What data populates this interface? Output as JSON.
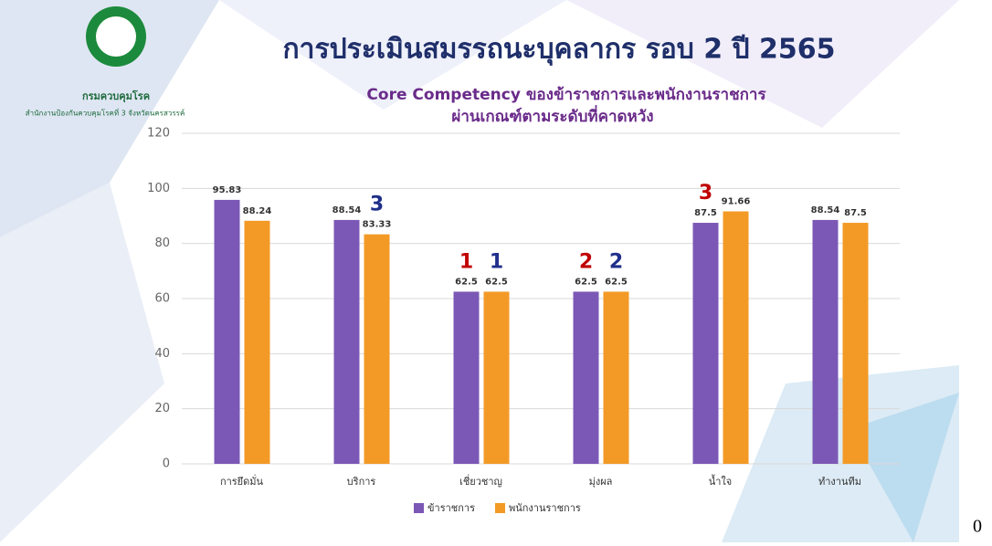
{
  "chart_data": {
    "type": "bar",
    "title": "การประเมินสมรรถนะบุคลากร รอบ 2 ปี 2565",
    "subtitle": [
      "Core Competency ของข้าราชการและพนักงานราชการ",
      "ผ่านเกณฑ์ตามระดับที่คาดหวัง"
    ],
    "logo_text": [
      "กรมควบคุมโรค",
      "สำนักงานป้องกันควบคุมโรคที่ 3 จังหวัดนครสวรรค์"
    ],
    "footer_text": "0",
    "categories": [
      "การยึดมั่น",
      "บริการ",
      "เชี่ยวชาญ",
      "มุ่งผล",
      "น้ำใจ",
      "ทำงานทีม"
    ],
    "series": [
      {
        "name": "ข้าราชการ",
        "color": "#7b58b6",
        "rank_color": "#c00000",
        "values": [
          95.83,
          88.54,
          62.5,
          62.5,
          87.5,
          88.54
        ],
        "ranks": [
          null,
          null,
          "1",
          "2",
          "3",
          null
        ]
      },
      {
        "name": "พนักงานราชการ",
        "color": "#f39a26",
        "rank_color": "#1f2f8a",
        "values": [
          88.24,
          83.33,
          62.5,
          62.5,
          91.66,
          87.5
        ],
        "ranks": [
          null,
          "3",
          "1",
          "2",
          null,
          null
        ]
      }
    ],
    "ylim": [
      0,
      120
    ],
    "yticks": [
      0,
      20,
      40,
      60,
      80,
      100,
      120
    ],
    "grid": true,
    "legend": "bottom"
  }
}
